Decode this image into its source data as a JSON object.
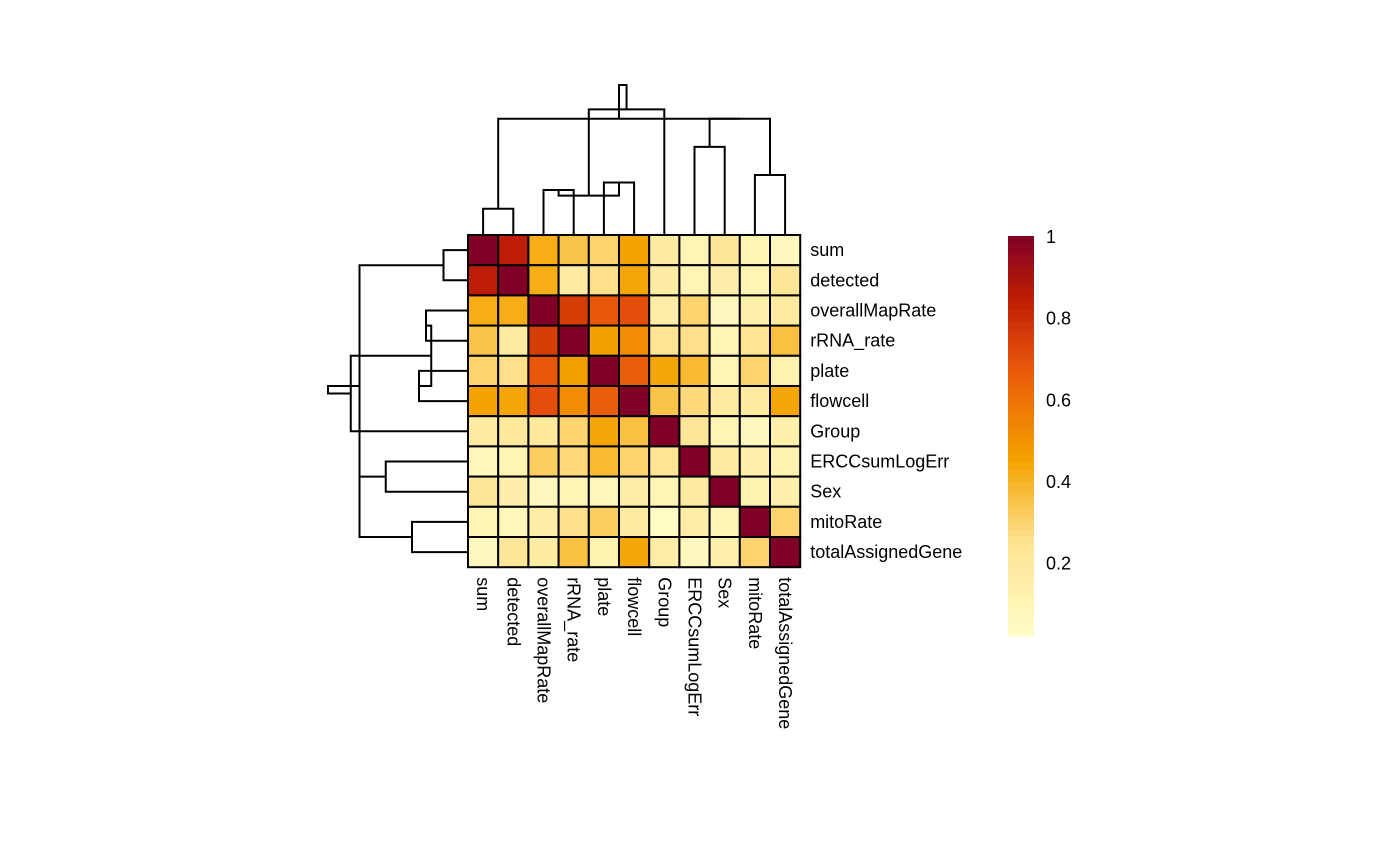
{
  "chart_data": {
    "type": "heatmap",
    "rows": [
      "sum",
      "detected",
      "overallMapRate",
      "rRNA_rate",
      "plate",
      "flowcell",
      "Group",
      "ERCCsumLogErr",
      "Sex",
      "mitoRate",
      "totalAssignedGene"
    ],
    "columns": [
      "sum",
      "detected",
      "overallMapRate",
      "rRNA_rate",
      "plate",
      "flowcell",
      "Group",
      "ERCCsumLogErr",
      "Sex",
      "mitoRate",
      "totalAssignedGene"
    ],
    "values": [
      [
        1.0,
        0.85,
        0.42,
        0.35,
        0.3,
        0.45,
        0.18,
        0.1,
        0.22,
        0.1,
        0.06
      ],
      [
        0.85,
        1.0,
        0.42,
        0.18,
        0.26,
        0.44,
        0.17,
        0.1,
        0.15,
        0.1,
        0.22
      ],
      [
        0.42,
        0.42,
        1.0,
        0.75,
        0.68,
        0.7,
        0.16,
        0.3,
        0.06,
        0.14,
        0.18
      ],
      [
        0.35,
        0.18,
        0.75,
        1.0,
        0.46,
        0.52,
        0.24,
        0.26,
        0.1,
        0.24,
        0.36
      ],
      [
        0.3,
        0.26,
        0.68,
        0.46,
        1.0,
        0.66,
        0.44,
        0.38,
        0.1,
        0.3,
        0.12
      ],
      [
        0.45,
        0.44,
        0.7,
        0.52,
        0.66,
        1.0,
        0.35,
        0.28,
        0.18,
        0.18,
        0.44
      ],
      [
        0.18,
        0.2,
        0.2,
        0.3,
        0.44,
        0.36,
        1.0,
        0.22,
        0.1,
        0.06,
        0.14
      ],
      [
        0.08,
        0.1,
        0.32,
        0.28,
        0.38,
        0.3,
        0.24,
        1.0,
        0.18,
        0.14,
        0.12
      ],
      [
        0.22,
        0.15,
        0.06,
        0.1,
        0.08,
        0.16,
        0.1,
        0.18,
        1.0,
        0.12,
        0.14
      ],
      [
        0.1,
        0.08,
        0.16,
        0.26,
        0.32,
        0.18,
        0.04,
        0.16,
        0.1,
        1.0,
        0.3
      ],
      [
        0.06,
        0.22,
        0.18,
        0.36,
        0.12,
        0.44,
        0.16,
        0.06,
        0.14,
        0.3,
        1.0
      ]
    ],
    "dendrogram": {
      "leaves": [
        "sum",
        "detected",
        "overallMapRate",
        "rRNA_rate",
        "plate",
        "flowcell",
        "Group",
        "ERCCsumLogErr",
        "Sex",
        "mitoRate",
        "totalAssignedGene"
      ],
      "merges": [
        {
          "a": 0,
          "b": 1,
          "height": 0.14
        },
        {
          "a": 4,
          "b": 5,
          "height": 0.28
        },
        {
          "a": 2,
          "b": 3,
          "height": 0.24
        },
        {
          "a": 9,
          "b": 10,
          "height": 0.32
        },
        {
          "a": 7,
          "b": 8,
          "height": 0.47
        },
        {
          "a": 12,
          "b": 13,
          "height": 0.21
        },
        {
          "a": 14,
          "b": 15,
          "height": 0.62
        },
        {
          "a": 6,
          "b": 16,
          "height": 0.67
        },
        {
          "a": 11,
          "b": 17,
          "height": 0.62
        },
        {
          "a": 18,
          "b": 19,
          "height": 0.8
        }
      ]
    },
    "legend": {
      "range": [
        0.02,
        1
      ],
      "ticks": [
        0.2,
        0.4,
        0.6,
        0.8,
        1
      ],
      "tick_labels": [
        "0.2",
        "0.4",
        "0.6",
        "0.8",
        "1"
      ],
      "placement": "right"
    },
    "palette": {
      "low": "#FFFFCC",
      "mid_low": "#FEE391",
      "mid": "#F5A300",
      "mid_high": "#E8560A",
      "high_mid": "#BD1C06",
      "high": "#800026"
    },
    "title": "",
    "xlabel": "",
    "ylabel": ""
  }
}
